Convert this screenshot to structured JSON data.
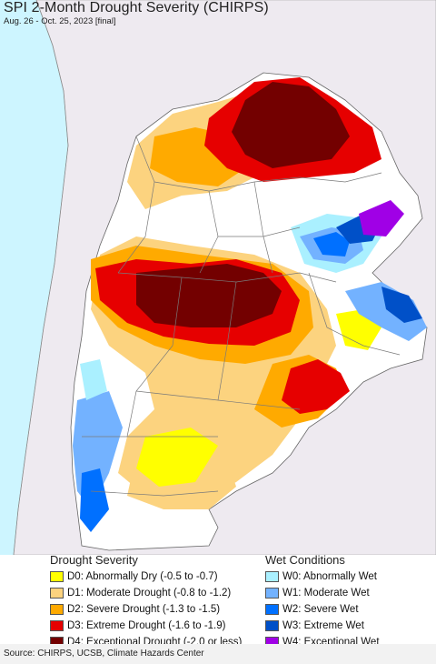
{
  "title": "SPI 2-Month Drought Severity (CHIRPS)",
  "subtitle": "Aug. 26 - Oct. 25, 2023 [final]",
  "legend": {
    "drought_title": "Drought Severity",
    "wet_title": "Wet Conditions",
    "drought": [
      {
        "label": "D0: Abnormally Dry (-0.5 to -0.7)",
        "color": "#ffff00"
      },
      {
        "label": "D1: Moderate Drought (-0.8 to -1.2)",
        "color": "#fcd37f"
      },
      {
        "label": "D2: Severe Drought (-1.3 to -1.5)",
        "color": "#ffaa00"
      },
      {
        "label": "D3: Extreme Drought (-1.6 to -1.9)",
        "color": "#e60000"
      },
      {
        "label": "D4: Exceptional Drought (-2.0 or less)",
        "color": "#730000"
      }
    ],
    "wet": [
      {
        "label": "W0: Abnormally Wet",
        "color": "#aaf0ff"
      },
      {
        "label": "W1: Moderate Wet",
        "color": "#73b2ff"
      },
      {
        "label": "W2: Severe Wet",
        "color": "#0070ff"
      },
      {
        "label": "W3: Extreme Wet",
        "color": "#0050c8"
      },
      {
        "label": "W4: Exceptional Wet",
        "color": "#a000e6"
      }
    ]
  },
  "source": "Source: CHIRPS, UCSB, Climate Hazards Center",
  "colors": {
    "ocean": "#cdf5ff",
    "outside_land": "#eeeaf0",
    "no_drought": "#ffffff",
    "border": "#7a7a7a"
  }
}
